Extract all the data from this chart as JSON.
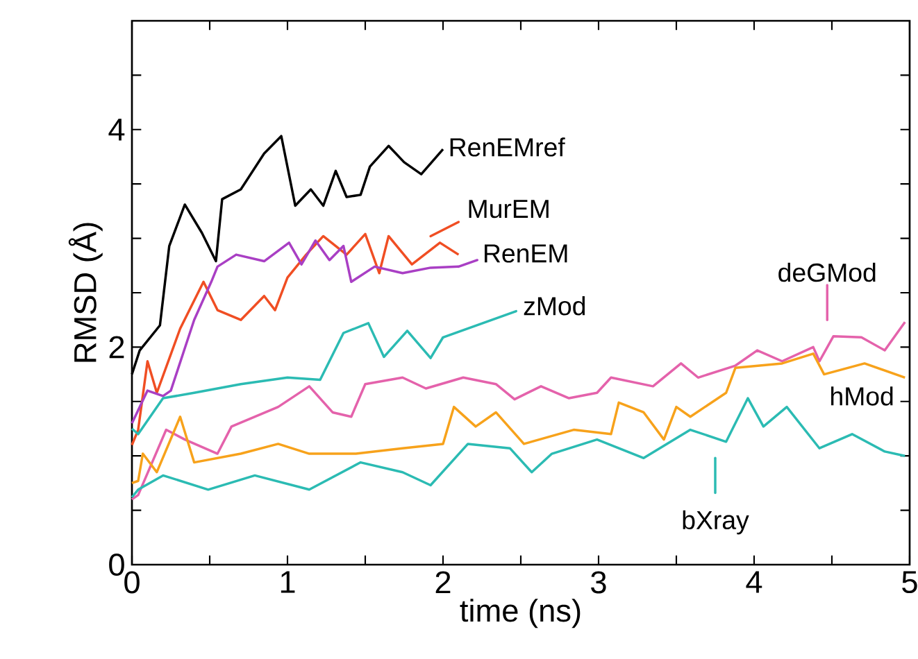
{
  "chart_data": {
    "type": "line",
    "xlabel": "time (ns)",
    "ylabel": "RMSD (Å)",
    "xlim": [
      0,
      5
    ],
    "ylim": [
      0,
      5
    ],
    "marker": "none",
    "line_style": "solid",
    "xticks": [
      0,
      {
        "value": 0.5,
        "label": null
      },
      1,
      {
        "value": 1.5,
        "label": null
      },
      2,
      {
        "value": 2.5,
        "label": null
      },
      3,
      {
        "value": 3.5,
        "label": null
      },
      4,
      {
        "value": 4.5,
        "label": null
      },
      5
    ],
    "yticks": [
      0,
      {
        "value": 0.5,
        "label": null
      },
      {
        "value": 1,
        "label": null
      },
      {
        "value": 1.5,
        "label": null
      },
      2,
      {
        "value": 2.5,
        "label": null
      },
      {
        "value": 3,
        "label": null
      },
      {
        "value": 3.5,
        "label": null
      },
      4,
      {
        "value": 4.5,
        "label": null
      }
    ],
    "series": [
      {
        "name": "RenEMref",
        "color": "#000000",
        "x": [
          0,
          0.05,
          0.18,
          0.24,
          0.34,
          0.45,
          0.54,
          0.58,
          0.7,
          0.85,
          0.96,
          1.05,
          1.15,
          1.23,
          1.31,
          1.38,
          1.47,
          1.53,
          1.65,
          1.75,
          1.86,
          2.0
        ],
        "values": [
          1.75,
          1.97,
          2.2,
          2.93,
          3.31,
          3.05,
          2.79,
          3.36,
          3.45,
          3.78,
          3.94,
          3.3,
          3.45,
          3.3,
          3.62,
          3.38,
          3.4,
          3.66,
          3.85,
          3.7,
          3.59,
          3.82
        ]
      },
      {
        "name": "MurEM",
        "color": "#f04e23",
        "x": [
          0,
          0.04,
          0.1,
          0.16,
          0.31,
          0.46,
          0.55,
          0.7,
          0.85,
          0.92,
          1.0,
          1.12,
          1.23,
          1.38,
          1.5,
          1.59,
          1.65,
          1.8,
          1.98,
          2.1
        ],
        "values": [
          1.1,
          1.24,
          1.87,
          1.58,
          2.17,
          2.6,
          2.34,
          2.25,
          2.47,
          2.34,
          2.64,
          2.85,
          3.02,
          2.85,
          3.04,
          2.68,
          3.02,
          2.76,
          2.96,
          2.85
        ]
      },
      {
        "name": "RenEM",
        "color": "#a93fc4",
        "x": [
          0,
          0.1,
          0.2,
          0.25,
          0.4,
          0.51,
          0.55,
          0.67,
          0.85,
          1.01,
          1.09,
          1.18,
          1.27,
          1.36,
          1.41,
          1.56,
          1.74,
          1.92,
          2.1
        ],
        "values": [
          1.3,
          1.6,
          1.55,
          1.6,
          2.25,
          2.6,
          2.74,
          2.85,
          2.79,
          2.96,
          2.76,
          2.98,
          2.8,
          2.93,
          2.6,
          2.74,
          2.68,
          2.73,
          2.74
        ]
      },
      {
        "name": "zMod",
        "color": "#2bbbb3",
        "x": [
          0,
          0.04,
          0.2,
          0.4,
          0.7,
          1.0,
          1.21,
          1.36,
          1.52,
          1.62,
          1.77,
          1.92,
          2.0
        ],
        "values": [
          1.25,
          1.2,
          1.53,
          1.58,
          1.66,
          1.72,
          1.7,
          2.13,
          2.22,
          1.91,
          2.15,
          1.9,
          2.09
        ]
      },
      {
        "name": "deGMod",
        "color": "#e462ab",
        "x": [
          0,
          0.04,
          0.22,
          0.34,
          0.55,
          0.64,
          0.94,
          1.14,
          1.29,
          1.41,
          1.5,
          1.74,
          1.89,
          2.13,
          2.34,
          2.46,
          2.63,
          2.81,
          2.99,
          3.08,
          3.35,
          3.53,
          3.64,
          3.88,
          4.02,
          4.18,
          4.38,
          4.42,
          4.51,
          4.69,
          4.84,
          4.97
        ],
        "values": [
          0.6,
          0.64,
          1.24,
          1.15,
          1.02,
          1.27,
          1.45,
          1.64,
          1.4,
          1.36,
          1.66,
          1.72,
          1.62,
          1.72,
          1.66,
          1.52,
          1.64,
          1.53,
          1.58,
          1.72,
          1.64,
          1.85,
          1.72,
          1.83,
          1.97,
          1.87,
          2.0,
          1.87,
          2.1,
          2.09,
          1.97,
          2.23
        ]
      },
      {
        "name": "hMod",
        "color": "#f7a21b",
        "x": [
          0,
          0.04,
          0.07,
          0.16,
          0.31,
          0.4,
          0.7,
          0.94,
          1.14,
          1.44,
          1.74,
          2.0,
          2.07,
          2.21,
          2.34,
          2.52,
          2.84,
          3.08,
          3.13,
          3.29,
          3.42,
          3.5,
          3.59,
          3.82,
          3.88,
          4.18,
          4.38,
          4.45,
          4.71,
          4.97
        ],
        "values": [
          0.75,
          0.77,
          1.02,
          0.85,
          1.36,
          0.94,
          1.02,
          1.11,
          1.02,
          1.02,
          1.07,
          1.11,
          1.45,
          1.27,
          1.4,
          1.11,
          1.24,
          1.2,
          1.49,
          1.4,
          1.15,
          1.45,
          1.36,
          1.58,
          1.81,
          1.85,
          1.94,
          1.75,
          1.85,
          1.72
        ]
      },
      {
        "name": "bXray",
        "color": "#2bbbb3",
        "x": [
          0,
          0.04,
          0.2,
          0.49,
          0.79,
          1.14,
          1.47,
          1.74,
          1.92,
          2.16,
          2.43,
          2.57,
          2.7,
          2.99,
          3.29,
          3.59,
          3.82,
          3.96,
          4.06,
          4.21,
          4.42,
          4.63,
          4.84,
          4.97
        ],
        "values": [
          0.62,
          0.69,
          0.82,
          0.69,
          0.82,
          0.69,
          0.94,
          0.85,
          0.73,
          1.11,
          1.07,
          0.85,
          1.02,
          1.15,
          0.98,
          1.24,
          1.13,
          1.53,
          1.27,
          1.45,
          1.07,
          1.2,
          1.04,
          1.0
        ]
      }
    ]
  }
}
